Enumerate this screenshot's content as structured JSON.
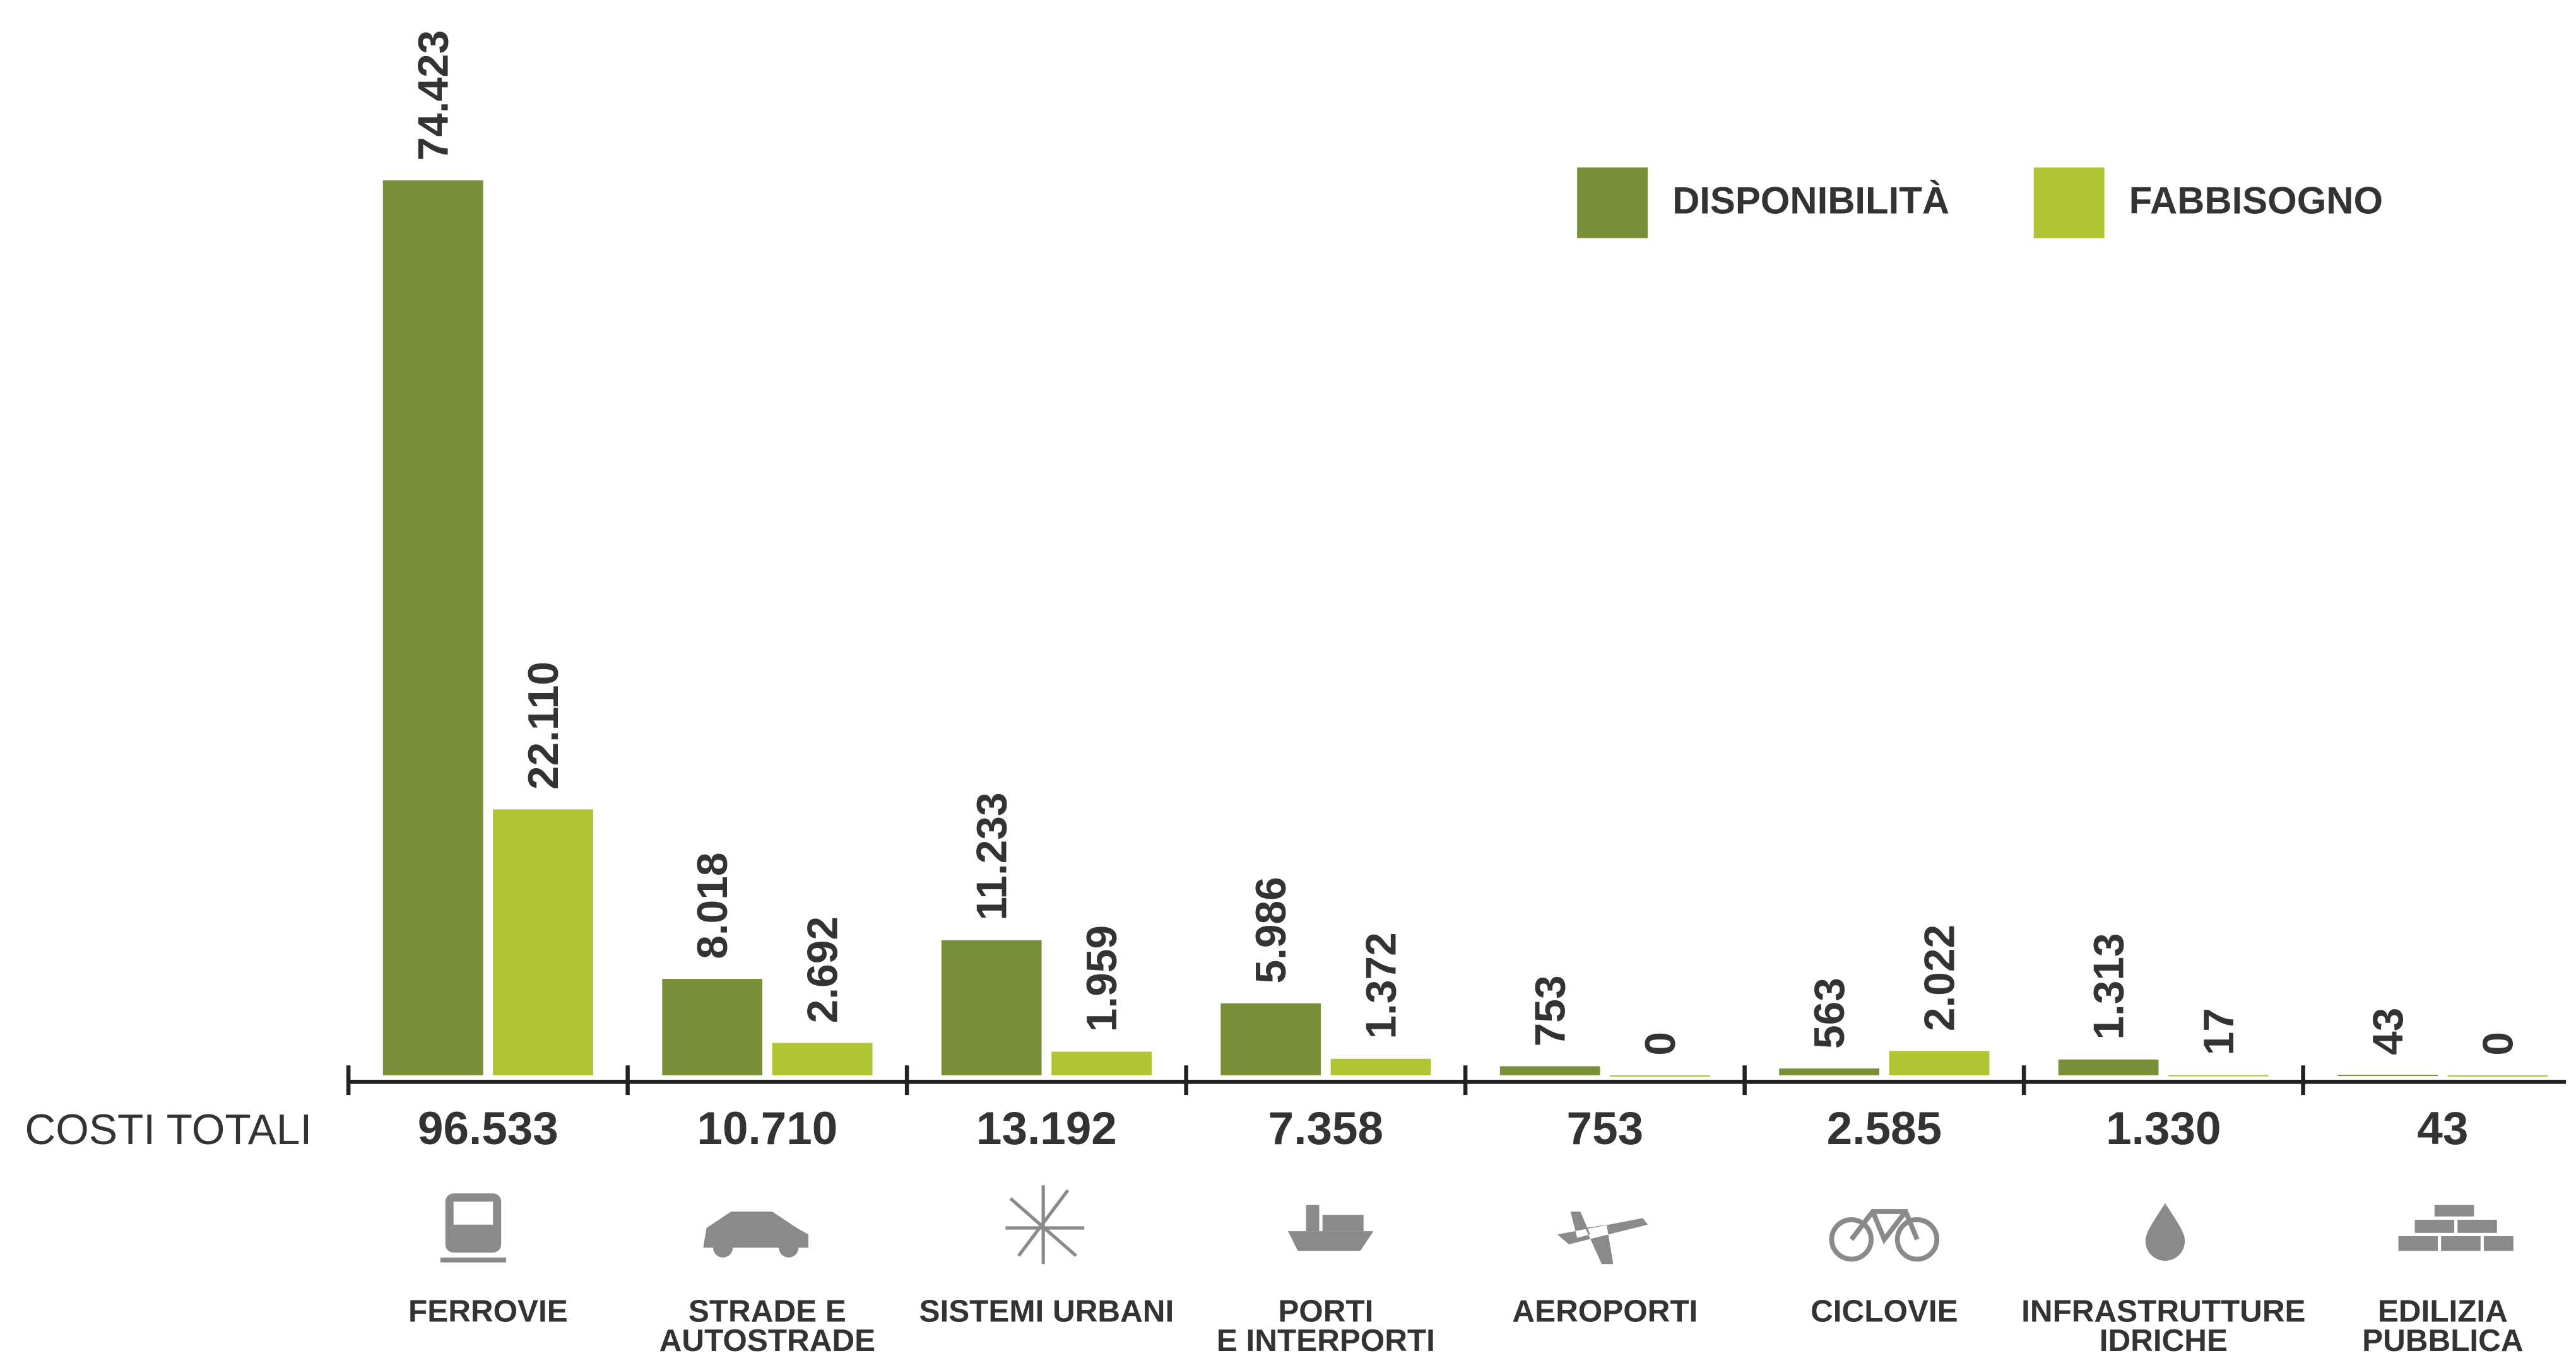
{
  "chart_data": {
    "type": "bar",
    "categories": [
      [
        "FERROVIE"
      ],
      [
        "STRADE E",
        "AUTOSTRADE"
      ],
      [
        "SISTEMI URBANI"
      ],
      [
        "PORTI",
        "E INTERPORTI"
      ],
      [
        "AEROPORTI"
      ],
      [
        "CICLOVIE"
      ],
      [
        "INFRASTRUTTURE",
        "IDRICHE"
      ],
      [
        "EDILIZIA",
        "PUBBLICA"
      ]
    ],
    "series": [
      {
        "name": "DISPONIBILITÀ",
        "color": "#7a9038",
        "values": [
          74423,
          8018,
          11233,
          5986,
          753,
          563,
          1313,
          43
        ],
        "value_labels": [
          "74.423",
          "8.018",
          "11.233",
          "5.986",
          "753",
          "563",
          "1.313",
          "43"
        ]
      },
      {
        "name": "FABBISOGNO",
        "color": "#b1c534",
        "values": [
          22110,
          2692,
          1959,
          1372,
          0,
          2022,
          17,
          0
        ],
        "value_labels": [
          "22.110",
          "2.692",
          "1.959",
          "1.372",
          "0",
          "2.022",
          "17",
          "0"
        ]
      }
    ],
    "totals_title": "COSTI TOTALI",
    "totals": [
      96533,
      10710,
      13192,
      7358,
      753,
      2585,
      1330,
      43
    ],
    "totals_labels": [
      "96.533",
      "10.710",
      "13.192",
      "7.358",
      "753",
      "2.585",
      "1.330",
      "43"
    ],
    "ylim": [
      0,
      80000
    ],
    "legend": "top-right"
  }
}
